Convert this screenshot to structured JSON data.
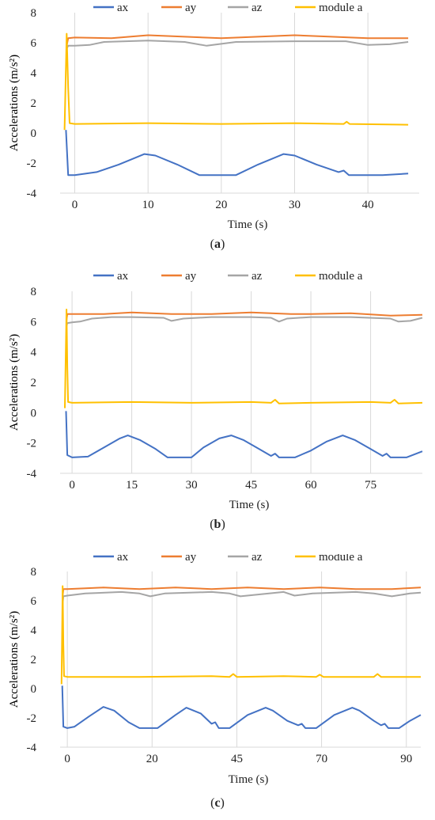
{
  "colors": {
    "ax": "#4472C4",
    "ay": "#ED7D31",
    "az": "#A5A5A5",
    "module_a": "#FFC000"
  },
  "chart_data": [
    {
      "type": "line",
      "caption": "a",
      "xlabel": "Time (s)",
      "ylabel": "Accelerations (m/s²)",
      "xlim": [
        -2,
        47
      ],
      "ylim": [
        -4,
        8
      ],
      "x_ticks": [
        0,
        10,
        20,
        30,
        40
      ],
      "y_ticks": [
        -4,
        -2,
        0,
        2,
        4,
        6,
        8
      ],
      "grid": "vertical",
      "legend": "top",
      "series": [
        {
          "name": "ax",
          "x": [
            -1.2,
            -0.9,
            0,
            3,
            6,
            8,
            9.5,
            11,
            14,
            17,
            20,
            22,
            25,
            27,
            28.5,
            30,
            33,
            36,
            36.7,
            37.4,
            40,
            42,
            45.5
          ],
          "y": [
            0.2,
            -2.8,
            -2.8,
            -2.6,
            -2.1,
            -1.7,
            -1.4,
            -1.5,
            -2.1,
            -2.8,
            -2.8,
            -2.8,
            -2.1,
            -1.7,
            -1.4,
            -1.5,
            -2.1,
            -2.6,
            -2.5,
            -2.8,
            -2.8,
            -2.8,
            -2.7
          ]
        },
        {
          "name": "ay",
          "x": [
            -1.1,
            -0.9,
            0,
            5,
            10,
            15,
            20,
            25,
            30,
            35,
            40,
            45.5
          ],
          "y": [
            5.8,
            6.3,
            6.35,
            6.3,
            6.5,
            6.4,
            6.3,
            6.4,
            6.5,
            6.4,
            6.3,
            6.3
          ]
        },
        {
          "name": "az",
          "x": [
            -1.1,
            -0.9,
            0,
            2,
            4,
            10,
            15,
            18,
            22,
            30,
            37,
            40,
            43,
            45.5
          ],
          "y": [
            5.6,
            5.8,
            5.8,
            5.85,
            6.05,
            6.15,
            6.05,
            5.8,
            6.05,
            6.1,
            6.1,
            5.85,
            5.9,
            6.05
          ]
        },
        {
          "name": "module a",
          "x": [
            -1.4,
            -1.1,
            -0.9,
            -0.7,
            0,
            10,
            20,
            30,
            36.7,
            37.1,
            37.5,
            45.5
          ],
          "y": [
            0.2,
            6.6,
            3.0,
            0.65,
            0.6,
            0.65,
            0.6,
            0.65,
            0.6,
            0.75,
            0.6,
            0.55
          ]
        }
      ]
    },
    {
      "type": "line",
      "caption": "b",
      "xlabel": "Time (s)",
      "ylabel": "Accelerations (m/s²)",
      "xlim": [
        -3,
        88
      ],
      "ylim": [
        -4,
        8
      ],
      "x_ticks": [
        0,
        15,
        30,
        45,
        60,
        75
      ],
      "y_ticks": [
        -4,
        -2,
        0,
        2,
        4,
        6,
        8
      ],
      "grid": "vertical",
      "legend": "top",
      "series": [
        {
          "name": "ax",
          "x": [
            -1.5,
            -1.2,
            0,
            4,
            8,
            12,
            14,
            17,
            21,
            24,
            27,
            30,
            33,
            37,
            40,
            43,
            47,
            50,
            51,
            52,
            56,
            60,
            64,
            68,
            71,
            75,
            78,
            79,
            80,
            84,
            88
          ],
          "y": [
            0.1,
            -2.8,
            -2.95,
            -2.9,
            -2.3,
            -1.7,
            -1.5,
            -1.8,
            -2.4,
            -2.95,
            -2.95,
            -2.95,
            -2.3,
            -1.7,
            -1.5,
            -1.8,
            -2.4,
            -2.85,
            -2.7,
            -2.95,
            -2.95,
            -2.5,
            -1.9,
            -1.5,
            -1.8,
            -2.4,
            -2.85,
            -2.7,
            -2.95,
            -2.95,
            -2.55
          ]
        },
        {
          "name": "ay",
          "x": [
            -1.4,
            -1.2,
            0,
            8,
            15,
            25,
            35,
            45,
            55,
            60,
            70,
            80,
            88
          ],
          "y": [
            6.1,
            6.5,
            6.5,
            6.5,
            6.6,
            6.5,
            6.5,
            6.6,
            6.5,
            6.5,
            6.55,
            6.4,
            6.45
          ]
        },
        {
          "name": "az",
          "x": [
            -1.4,
            -1.2,
            0,
            2,
            5,
            10,
            15,
            23,
            25,
            28,
            35,
            45,
            50,
            52,
            54,
            60,
            70,
            80,
            82,
            85,
            88
          ],
          "y": [
            5.7,
            5.9,
            5.95,
            6.0,
            6.2,
            6.3,
            6.3,
            6.25,
            6.05,
            6.2,
            6.3,
            6.3,
            6.25,
            6.0,
            6.2,
            6.3,
            6.3,
            6.2,
            6.0,
            6.05,
            6.25
          ]
        },
        {
          "name": "module a",
          "x": [
            -1.8,
            -1.4,
            -1.2,
            -1.0,
            0,
            15,
            30,
            45,
            50,
            51,
            52,
            60,
            75,
            80,
            81,
            82,
            88
          ],
          "y": [
            0.3,
            6.8,
            3.0,
            0.7,
            0.65,
            0.7,
            0.65,
            0.7,
            0.65,
            0.85,
            0.6,
            0.65,
            0.7,
            0.65,
            0.85,
            0.6,
            0.65
          ]
        }
      ]
    },
    {
      "type": "line",
      "caption": "c",
      "xlabel": "Time (s)",
      "ylabel": "Accelerations (m/s²)",
      "xlim": [
        -2,
        98
      ],
      "ylim": [
        -4,
        8
      ],
      "x_ticks": [
        0,
        20,
        45,
        70,
        90
      ],
      "tick_values_positions": [
        0,
        23.5,
        47,
        70.5,
        94
      ],
      "y_ticks": [
        -4,
        -2,
        0,
        2,
        4,
        6,
        8
      ],
      "grid": "vertical",
      "legend": "top",
      "series": [
        {
          "name": "ax",
          "x": [
            -1.4,
            -1.1,
            0,
            2,
            6,
            10,
            13,
            17,
            20,
            25,
            30,
            33,
            37,
            40,
            41,
            42,
            45,
            50,
            55,
            57,
            61,
            64,
            65,
            66,
            69,
            74,
            79,
            81,
            85,
            87,
            88,
            89,
            92,
            95,
            98
          ],
          "y": [
            0.2,
            -2.6,
            -2.7,
            -2.6,
            -1.9,
            -1.25,
            -1.5,
            -2.3,
            -2.7,
            -2.7,
            -1.8,
            -1.3,
            -1.7,
            -2.4,
            -2.3,
            -2.7,
            -2.7,
            -1.8,
            -1.3,
            -1.5,
            -2.2,
            -2.5,
            -2.4,
            -2.7,
            -2.7,
            -1.8,
            -1.3,
            -1.5,
            -2.2,
            -2.5,
            -2.4,
            -2.7,
            -2.7,
            -2.2,
            -1.8
          ]
        },
        {
          "name": "ay",
          "x": [
            -1.3,
            -1.1,
            0,
            10,
            20,
            30,
            40,
            50,
            60,
            70,
            80,
            90,
            98
          ],
          "y": [
            6.3,
            6.8,
            6.8,
            6.9,
            6.8,
            6.9,
            6.8,
            6.9,
            6.8,
            6.9,
            6.8,
            6.8,
            6.9
          ]
        },
        {
          "name": "az",
          "x": [
            -1.3,
            -1.1,
            0,
            5,
            15,
            20,
            23,
            27,
            40,
            45,
            48,
            60,
            63,
            68,
            80,
            85,
            90,
            95,
            98
          ],
          "y": [
            5.8,
            6.3,
            6.35,
            6.5,
            6.6,
            6.5,
            6.3,
            6.5,
            6.6,
            6.5,
            6.3,
            6.6,
            6.35,
            6.5,
            6.6,
            6.5,
            6.3,
            6.5,
            6.55
          ]
        },
        {
          "name": "module a",
          "x": [
            -1.6,
            -1.3,
            -1.1,
            -0.9,
            0,
            20,
            40,
            45,
            46,
            47,
            60,
            69,
            70,
            71,
            85,
            86,
            87,
            98
          ],
          "y": [
            0.3,
            7.0,
            3.0,
            0.85,
            0.8,
            0.8,
            0.85,
            0.8,
            1.0,
            0.8,
            0.85,
            0.8,
            0.95,
            0.8,
            0.8,
            1.0,
            0.8,
            0.8
          ]
        }
      ]
    }
  ],
  "legend_labels": [
    "ax",
    "ay",
    "az",
    "module a"
  ],
  "captions": [
    {
      "open": "(",
      "letter": "a",
      "close": ")"
    },
    {
      "open": "(",
      "letter": "b",
      "close": ")"
    },
    {
      "open": "(",
      "letter": "c",
      "close": ")"
    }
  ]
}
